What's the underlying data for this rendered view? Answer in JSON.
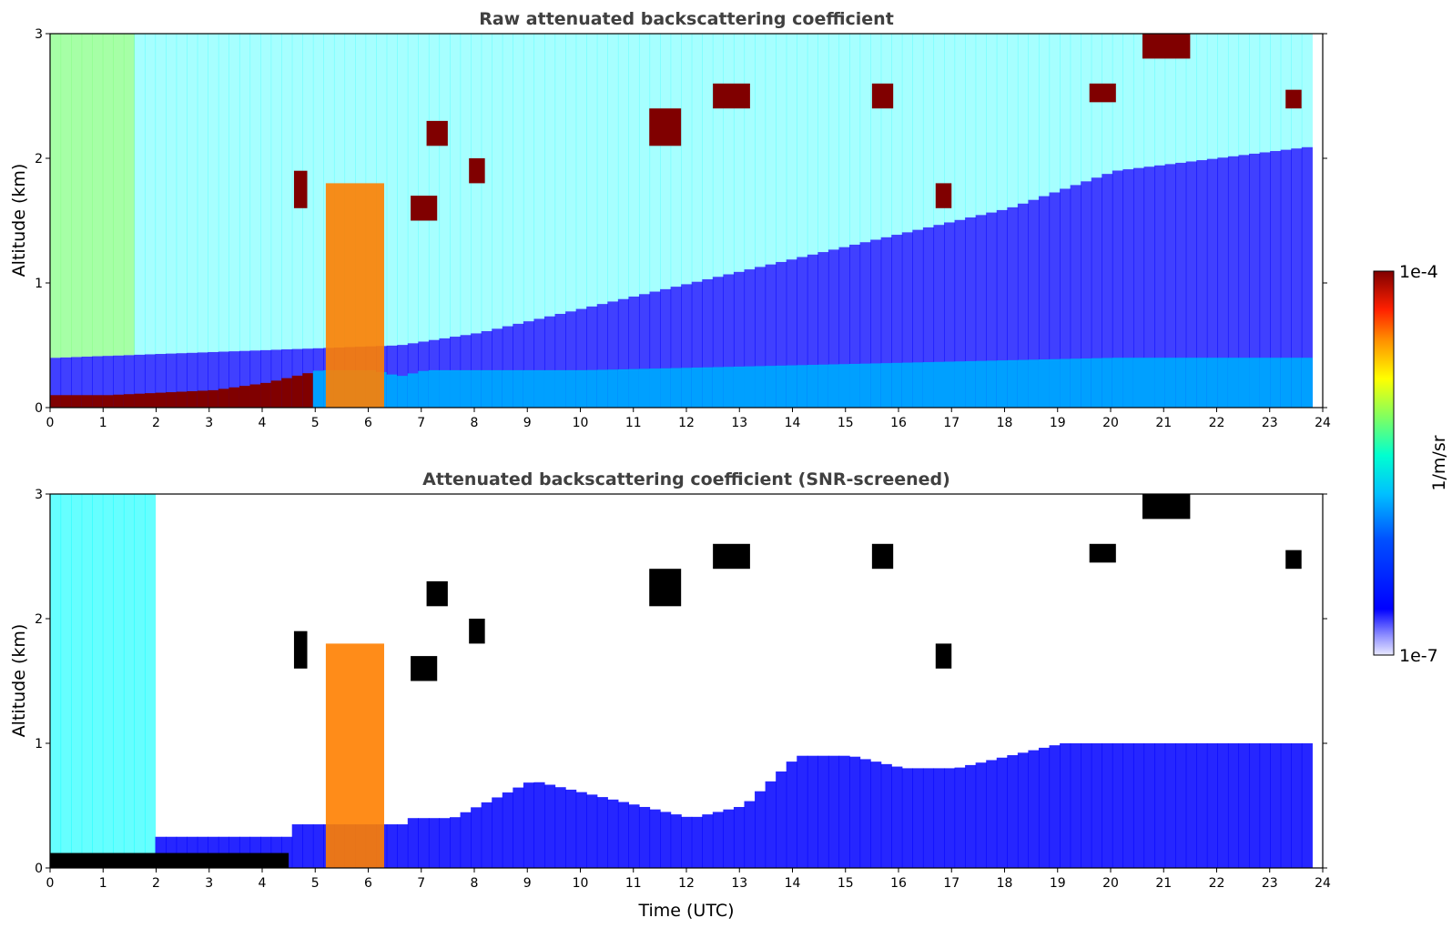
{
  "chart_data": [
    {
      "type": "heatmap",
      "title": "Raw attenuated backscattering coefficient",
      "xlabel": "",
      "ylabel": "Altitude (km)",
      "xlim": [
        0,
        24
      ],
      "ylim": [
        0,
        3
      ],
      "xticks": [
        0,
        1,
        2,
        3,
        4,
        5,
        6,
        7,
        8,
        9,
        10,
        11,
        12,
        13,
        14,
        15,
        16,
        17,
        18,
        19,
        20,
        21,
        22,
        23,
        24
      ],
      "yticks": [
        0,
        1,
        2,
        3
      ],
      "data_extent_hours": [
        0,
        23.8
      ],
      "features": {
        "surface_layer_top_km": [
          [
            0,
            0.1
          ],
          [
            1,
            0.1
          ],
          [
            2,
            0.12
          ],
          [
            3,
            0.14
          ],
          [
            4,
            0.2
          ],
          [
            4.5,
            0.25
          ],
          [
            5,
            0.3
          ],
          [
            6,
            0.3
          ],
          [
            6.5,
            0.25
          ],
          [
            7,
            0.3
          ],
          [
            10,
            0.3
          ],
          [
            15,
            0.35
          ],
          [
            20,
            0.4
          ],
          [
            23.8,
            0.4
          ]
        ],
        "blue_noise_top_km": [
          [
            0,
            0.4
          ],
          [
            6.5,
            0.5
          ],
          [
            8,
            0.6
          ],
          [
            10,
            0.8
          ],
          [
            12,
            1.0
          ],
          [
            15,
            1.3
          ],
          [
            18,
            1.6
          ],
          [
            20,
            1.9
          ],
          [
            23.8,
            2.1
          ]
        ],
        "convective_plume": {
          "x0": 5.2,
          "x1": 6.3,
          "top_km": 1.8
        },
        "clouds": [
          {
            "x": 4.6,
            "y": 1.6,
            "w": 0.25,
            "h": 0.3
          },
          {
            "x": 7.1,
            "y": 2.1,
            "w": 0.4,
            "h": 0.2
          },
          {
            "x": 7.9,
            "y": 1.8,
            "w": 0.3,
            "h": 0.2
          },
          {
            "x": 6.8,
            "y": 1.5,
            "w": 0.5,
            "h": 0.2
          },
          {
            "x": 11.3,
            "y": 2.1,
            "w": 0.6,
            "h": 0.3
          },
          {
            "x": 12.5,
            "y": 2.4,
            "w": 0.7,
            "h": 0.2
          },
          {
            "x": 15.5,
            "y": 2.4,
            "w": 0.4,
            "h": 0.2
          },
          {
            "x": 16.7,
            "y": 1.6,
            "w": 0.3,
            "h": 0.2
          },
          {
            "x": 19.6,
            "y": 2.45,
            "w": 0.5,
            "h": 0.15
          },
          {
            "x": 20.6,
            "y": 2.8,
            "w": 0.9,
            "h": 0.35
          },
          {
            "x": 23.3,
            "y": 2.4,
            "w": 0.3,
            "h": 0.15
          }
        ]
      },
      "colorbar": {
        "min_label": "1e-7",
        "max_label": "1e-4",
        "label": "1/m/sr",
        "scale": "log"
      }
    },
    {
      "type": "heatmap",
      "title": "Attenuated backscattering coefficient (SNR-screened)",
      "xlabel": "Time (UTC)",
      "ylabel": "Altitude (km)",
      "xlim": [
        0,
        24
      ],
      "ylim": [
        0,
        3
      ],
      "xticks": [
        0,
        1,
        2,
        3,
        4,
        5,
        6,
        7,
        8,
        9,
        10,
        11,
        12,
        13,
        14,
        15,
        16,
        17,
        18,
        19,
        20,
        21,
        22,
        23,
        24
      ],
      "yticks": [
        0,
        1,
        2,
        3
      ],
      "data_extent_hours": [
        0,
        23.8
      ],
      "features": {
        "screened_blue_top_km": [
          [
            6.6,
            0.4
          ],
          [
            7.5,
            0.4
          ],
          [
            8,
            0.5
          ],
          [
            9,
            0.7
          ],
          [
            10,
            0.6
          ],
          [
            11,
            0.5
          ],
          [
            12,
            0.4
          ],
          [
            13,
            0.5
          ],
          [
            14,
            0.9
          ],
          [
            15,
            0.9
          ],
          [
            16,
            0.8
          ],
          [
            17,
            0.8
          ],
          [
            18,
            0.9
          ],
          [
            19,
            1.0
          ],
          [
            20,
            1.0
          ],
          [
            21,
            1.0
          ],
          [
            22,
            1.0
          ],
          [
            23.8,
            1.0
          ]
        ]
      }
    }
  ],
  "palette": [
    "#ffffff",
    "#e0e0ff",
    "#0000ff",
    "#00a0ff",
    "#00ffff",
    "#80ff80",
    "#ffff00",
    "#ff8000",
    "#ff0000",
    "#800000",
    "#000000"
  ]
}
